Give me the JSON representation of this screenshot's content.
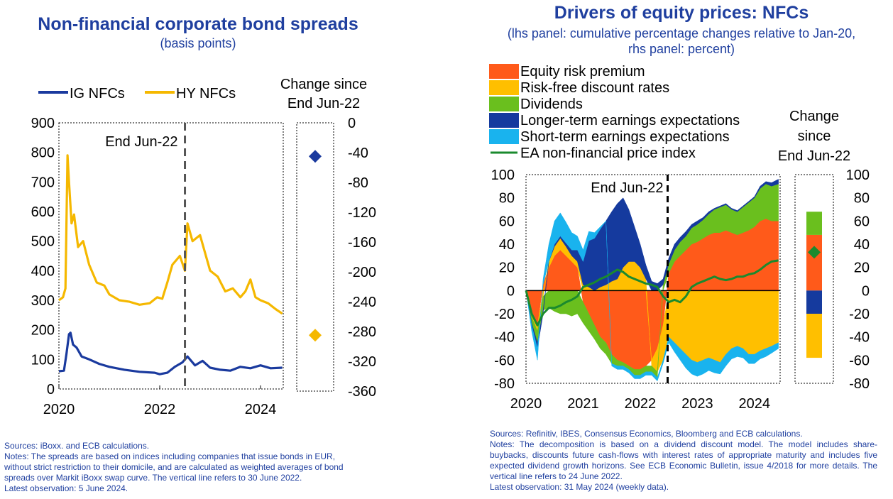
{
  "left": {
    "title": "Non-financial corporate bond spreads",
    "subtitle": "(basis points)",
    "change_label_1": "Change since",
    "change_label_2": "End Jun-22",
    "vline_label": "End Jun-22",
    "notes": [
      "Sources: iBoxx. and ECB calculations.",
      "Notes: The spreads are based on indices including companies that issue bonds in EUR,",
      "without strict restriction to their domicile, and are calculated as weighted averages of bond",
      "spreads over Markit iBoxx swap curve. The vertical line refers to 30 June 2022.",
      "Latest observation: 5 June 2024."
    ]
  },
  "right": {
    "title": "Drivers of equity prices: NFCs",
    "subtitle_1": "(lhs panel: cumulative percentage changes relative to Jan-20,",
    "subtitle_2": "rhs panel: percent)",
    "change_label_1": "Change",
    "change_label_2": "since",
    "change_label_3": "End Jun-22",
    "vline_label": "End Jun-22",
    "notes": [
      "Sources: Refinitiv, IBES, Consensus Economics, Bloomberg and ECB calculations.",
      "Notes: The decomposition is based on a dividend discount model. The model includes share-buybacks, discounts future cash-flows with interest rates of appropriate maturity and includes five expected dividend growth horizons. See ECB Economic Bulletin, issue 4/2018 for more details. The vertical line refers to 24 June 2022.",
      "Latest observation: 31 May 2024 (weekly data)."
    ]
  },
  "chart_data": [
    {
      "type": "line",
      "title": "Non-financial corporate bond spreads",
      "unit": "basis points",
      "x_ticks": [
        "2020",
        "2022",
        "2024"
      ],
      "y_ticks": [
        0,
        100,
        200,
        300,
        400,
        500,
        600,
        700,
        800,
        900
      ],
      "ylim": [
        0,
        900
      ],
      "xlim": [
        2020.0,
        2024.45
      ],
      "vline": 2022.5,
      "legend_position": "top",
      "series": [
        {
          "name": "IG NFCs",
          "color": "#1a3a9e",
          "x": [
            2020.0,
            2020.1,
            2020.15,
            2020.2,
            2020.23,
            2020.28,
            2020.35,
            2020.45,
            2020.6,
            2020.8,
            2021.0,
            2021.3,
            2021.6,
            2021.9,
            2022.0,
            2022.15,
            2022.3,
            2022.45,
            2022.55,
            2022.7,
            2022.85,
            2023.0,
            2023.2,
            2023.4,
            2023.6,
            2023.8,
            2024.0,
            2024.2,
            2024.43
          ],
          "y": [
            60,
            62,
            120,
            185,
            190,
            150,
            140,
            110,
            100,
            85,
            75,
            65,
            58,
            55,
            50,
            55,
            75,
            90,
            110,
            80,
            95,
            72,
            65,
            62,
            75,
            70,
            80,
            70,
            72
          ]
        },
        {
          "name": "HY NFCs",
          "color": "#f5b800",
          "x": [
            2020.0,
            2020.08,
            2020.13,
            2020.17,
            2020.2,
            2020.25,
            2020.3,
            2020.38,
            2020.48,
            2020.6,
            2020.75,
            2020.9,
            2021.0,
            2021.2,
            2021.4,
            2021.6,
            2021.8,
            2021.95,
            2022.05,
            2022.15,
            2022.25,
            2022.4,
            2022.5,
            2022.55,
            2022.65,
            2022.8,
            2022.9,
            2023.0,
            2023.15,
            2023.3,
            2023.45,
            2023.6,
            2023.7,
            2023.8,
            2023.9,
            2024.0,
            2024.15,
            2024.3,
            2024.43
          ],
          "y": [
            300,
            310,
            340,
            790,
            700,
            560,
            590,
            480,
            500,
            420,
            360,
            350,
            320,
            300,
            295,
            285,
            290,
            310,
            305,
            360,
            420,
            450,
            400,
            560,
            500,
            520,
            460,
            400,
            380,
            330,
            340,
            310,
            330,
            370,
            310,
            300,
            290,
            270,
            255
          ]
        }
      ],
      "change_since": {
        "axis_ticks": [
          0,
          -40,
          -80,
          -120,
          -160,
          -200,
          -240,
          -280,
          -320,
          -360
        ],
        "ylim": [
          -360,
          0
        ],
        "IG NFCs": -45,
        "HY NFCs": -285
      }
    },
    {
      "type": "area",
      "title": "Drivers of equity prices: NFCs",
      "unit": "cumulative percentage changes relative to Jan-20",
      "x_ticks": [
        "2020",
        "2021",
        "2022",
        "2023",
        "2024"
      ],
      "y_ticks": [
        100,
        80,
        60,
        40,
        20,
        0,
        -20,
        -40,
        -60,
        -80
      ],
      "ylim": [
        -80,
        100
      ],
      "xlim": [
        2020.0,
        2024.45
      ],
      "vline": 2022.48,
      "legend_position": "top-left",
      "x": [
        2020.0,
        2020.1,
        2020.2,
        2020.3,
        2020.4,
        2020.5,
        2020.6,
        2020.7,
        2020.8,
        2020.9,
        2021.0,
        2021.1,
        2021.2,
        2021.3,
        2021.4,
        2021.5,
        2021.6,
        2021.7,
        2021.8,
        2021.9,
        2022.0,
        2022.1,
        2022.2,
        2022.3,
        2022.4,
        2022.5,
        2022.6,
        2022.7,
        2022.8,
        2022.9,
        2023.0,
        2023.1,
        2023.2,
        2023.3,
        2023.4,
        2023.5,
        2023.6,
        2023.7,
        2023.8,
        2023.9,
        2024.0,
        2024.1,
        2024.2,
        2024.3,
        2024.42
      ],
      "series": [
        {
          "name": "Equity risk premium",
          "color": "#ff5a1a",
          "values": [
            0,
            -20,
            -30,
            5,
            20,
            30,
            35,
            30,
            25,
            20,
            -10,
            -20,
            -30,
            -40,
            -45,
            -55,
            -60,
            -62,
            -65,
            -68,
            -68,
            -65,
            -60,
            -50,
            -30,
            15,
            25,
            30,
            35,
            40,
            42,
            45,
            48,
            50,
            50,
            52,
            50,
            48,
            50,
            52,
            55,
            60,
            62,
            60,
            60
          ]
        },
        {
          "name": "Risk-free discount rates",
          "color": "#ffbf00",
          "values": [
            0,
            -3,
            -5,
            -5,
            5,
            8,
            10,
            8,
            5,
            5,
            5,
            3,
            0,
            3,
            5,
            8,
            10,
            20,
            25,
            25,
            20,
            10,
            -5,
            -20,
            -30,
            -40,
            -45,
            -50,
            -55,
            -60,
            -62,
            -60,
            -58,
            -60,
            -62,
            -55,
            -50,
            -48,
            -50,
            -55,
            -55,
            -52,
            -50,
            -48,
            -45
          ]
        },
        {
          "name": "Dividends",
          "color": "#6abf1e",
          "values": [
            0,
            -5,
            -10,
            -12,
            -15,
            -18,
            -20,
            -20,
            -22,
            -20,
            -18,
            -15,
            -12,
            -10,
            -10,
            -8,
            -5,
            -3,
            -3,
            -5,
            -5,
            -5,
            -5,
            -5,
            5,
            8,
            10,
            12,
            12,
            14,
            15,
            16,
            18,
            20,
            22,
            22,
            20,
            20,
            22,
            24,
            25,
            28,
            30,
            30,
            32
          ]
        },
        {
          "name": "Longer-term earnings expectations",
          "color": "#153a9e",
          "values": [
            0,
            -2,
            -5,
            -3,
            0,
            2,
            2,
            3,
            5,
            10,
            20,
            40,
            45,
            50,
            55,
            60,
            65,
            60,
            45,
            30,
            20,
            12,
            8,
            6,
            5,
            5,
            5,
            4,
            4,
            3,
            3,
            2,
            2,
            1,
            1,
            1,
            1,
            1,
            1,
            1,
            1,
            2,
            2,
            3,
            4
          ]
        },
        {
          "name": "Short-term earnings expectations",
          "color": "#19b3ee",
          "values": [
            0,
            -5,
            -10,
            5,
            15,
            20,
            20,
            18,
            15,
            12,
            10,
            8,
            5,
            2,
            0,
            -2,
            -3,
            -3,
            -3,
            -3,
            -3,
            -3,
            -3,
            -3,
            -3,
            -5,
            -8,
            -10,
            -12,
            -12,
            -12,
            -12,
            -11,
            -11,
            -10,
            -10,
            -9,
            -9,
            -8,
            -8,
            -8,
            -7,
            -7,
            -6,
            -5
          ]
        },
        {
          "name": "EA non-financial price index",
          "color": "#1a8a2e",
          "is_line": true,
          "values": [
            0,
            -20,
            -30,
            -20,
            -15,
            -15,
            -13,
            -10,
            -8,
            -5,
            3,
            5,
            7,
            10,
            12,
            15,
            18,
            16,
            12,
            10,
            8,
            6,
            5,
            3,
            -5,
            -10,
            -8,
            -10,
            -5,
            3,
            6,
            8,
            10,
            12,
            10,
            9,
            10,
            12,
            12,
            14,
            15,
            18,
            22,
            25,
            26
          ]
        }
      ],
      "change_since": {
        "axis_ticks": [
          100,
          80,
          60,
          40,
          20,
          0,
          -20,
          -40,
          -60,
          -80
        ],
        "ylim": [
          -80,
          100
        ],
        "bars": [
          {
            "name": "Equity risk premium",
            "value": 48,
            "color": "#ff5a1a"
          },
          {
            "name": "Dividends",
            "value": 20,
            "color": "#6abf1e"
          },
          {
            "name": "Longer-term earnings expectations",
            "value": -20,
            "color": "#153a9e"
          },
          {
            "name": "Risk-free discount rates",
            "value": -38,
            "color": "#ffbf00"
          }
        ],
        "EA non-financial price index": 33
      }
    }
  ]
}
